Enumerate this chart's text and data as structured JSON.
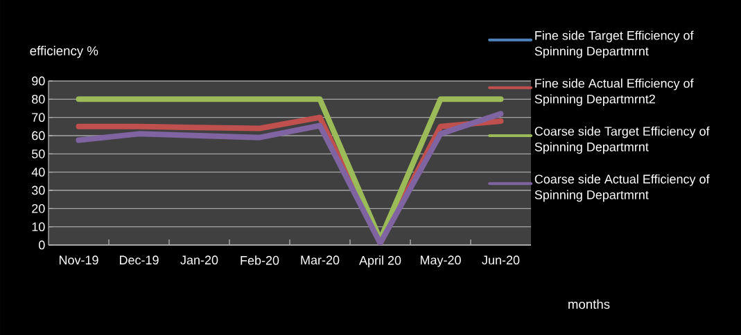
{
  "chart_data": {
    "type": "line",
    "ylabel": "efficiency %",
    "xlabel": "months",
    "categories": [
      "Nov-19",
      "Dec-19",
      "Jan-20",
      "Feb-20",
      "Mar-20",
      "April 20",
      "May-20",
      "Jun-20"
    ],
    "series": [
      {
        "name": "Fine side Target Efficiency of Spinning Departmrnt",
        "color": "#4f81bd",
        "values": [
          null,
          null,
          null,
          null,
          null,
          null,
          null,
          null
        ]
      },
      {
        "name": "Fine side Actual Efficiency of Spinning Departmrnt2",
        "color": "#c0504d",
        "values": [
          65,
          65,
          64.5,
          64,
          70,
          1,
          65,
          68
        ]
      },
      {
        "name": "Coarse side Target Efficiency  of Spinning Departmrnt",
        "color": "#9bbb59",
        "values": [
          80,
          80,
          80,
          80,
          80,
          3,
          80,
          80
        ]
      },
      {
        "name": "Coarse side Actual Efficiency of Spinning Departmrnt",
        "color": "#8064a2",
        "values": [
          57.5,
          61,
          60,
          59,
          65.5,
          1,
          61,
          72
        ]
      }
    ],
    "ylim": [
      0,
      90
    ],
    "yticks": [
      0,
      10,
      20,
      30,
      40,
      50,
      60,
      70,
      80,
      90
    ],
    "grid": "y",
    "legend": "right",
    "marker": "none",
    "line_style": "solid"
  }
}
